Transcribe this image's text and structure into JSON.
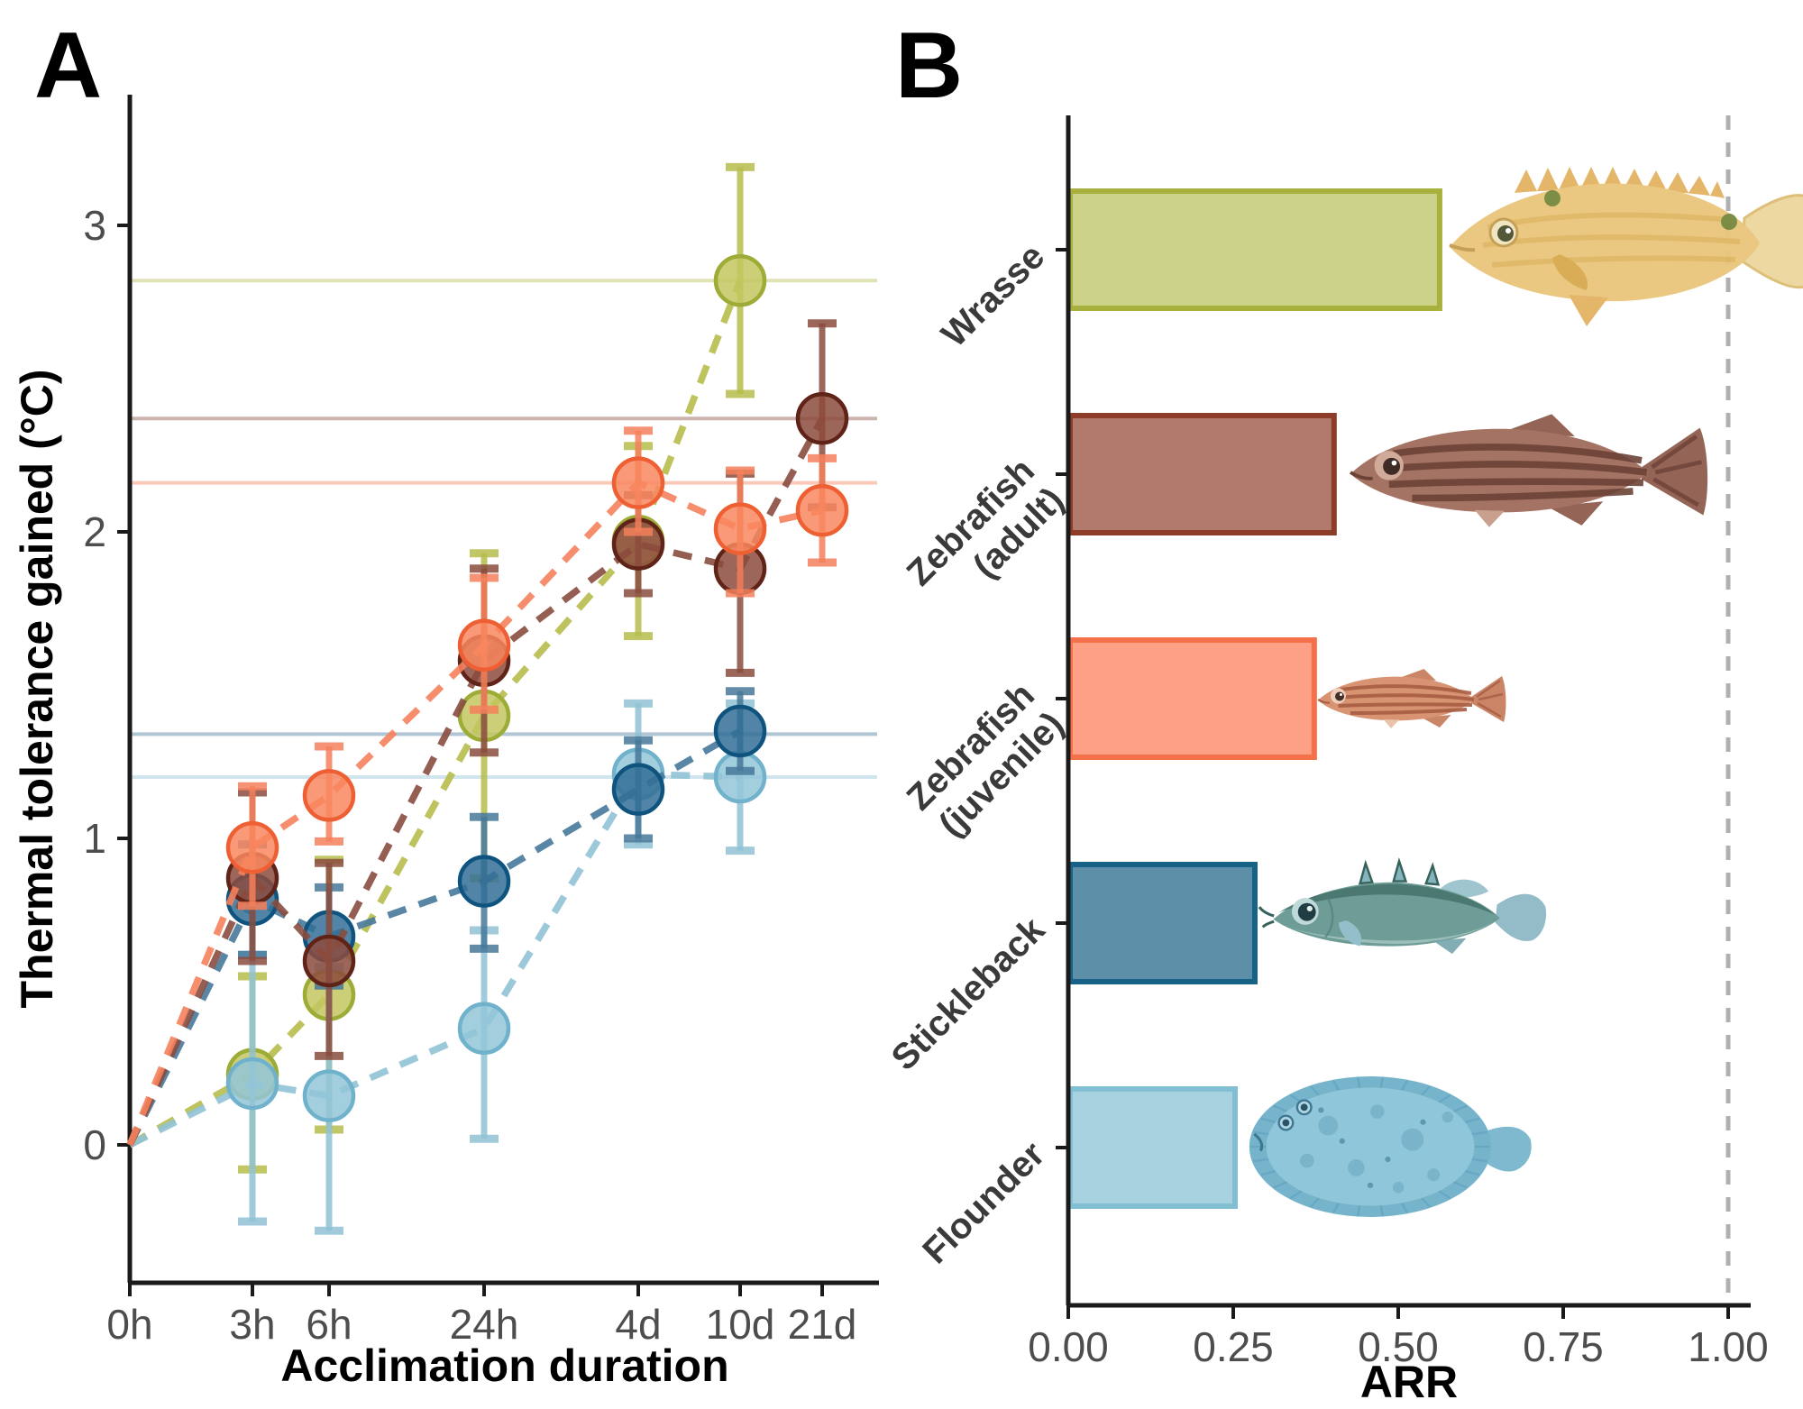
{
  "figure": {
    "panel_a_label": "A",
    "panel_b_label": "B",
    "background": "#ffffff"
  },
  "colors": {
    "axis": "#1a1a1a",
    "tick_label": "#4d4d4d",
    "reference_dash": "#b0b0b0"
  },
  "species": [
    {
      "id": "wrasse",
      "label": "Wrasse",
      "label_lines": [
        "Wrasse"
      ],
      "arr": 0.56,
      "line_color": "#b7bd4d",
      "point_fill": "#c3c75f",
      "point_stroke": "#9dab37",
      "bar_fill": "#ccd289",
      "bar_stroke": "#a8b13e",
      "fish_icon": "wrasse-fish-illustration"
    },
    {
      "id": "zebrafish-adult",
      "label": "Zebrafish (adult)",
      "label_lines": [
        "Zebrafish",
        "(adult)"
      ],
      "arr": 0.4,
      "line_color": "#8a4d3f",
      "point_fill": "#8c4b3d",
      "point_stroke": "#5f2318",
      "bar_fill": "#b17a6c",
      "bar_stroke": "#8e3c2a",
      "fish_icon": "zebrafish-adult-fish-illustration"
    },
    {
      "id": "zebrafish-juvenile",
      "label": "Zebrafish (juvenile)",
      "label_lines": [
        "Zebrafish",
        "(juvenile)"
      ],
      "arr": 0.37,
      "line_color": "#f5815c",
      "point_fill": "#f9875f",
      "point_stroke": "#ee5f33",
      "bar_fill": "#fda085",
      "bar_stroke": "#f4714a",
      "fish_icon": "zebrafish-juvenile-fish-illustration"
    },
    {
      "id": "stickleback",
      "label": "Stickleback",
      "label_lines": [
        "Stickleback"
      ],
      "arr": 0.28,
      "line_color": "#48799b",
      "point_fill": "#336f97",
      "point_stroke": "#0f547e",
      "bar_fill": "#5d8fa9",
      "bar_stroke": "#176286",
      "fish_icon": "stickleback-fish-illustration"
    },
    {
      "id": "flounder",
      "label": "Flounder",
      "label_lines": [
        "Flounder"
      ],
      "arr": 0.25,
      "line_color": "#91c3d5",
      "point_fill": "#93c6d8",
      "point_stroke": "#70b2cb",
      "bar_fill": "#a8d2e0",
      "bar_stroke": "#83bfd3",
      "fish_icon": "flounder-fish-illustration"
    }
  ],
  "chart_data": [
    {
      "type": "scatter",
      "panel": "A",
      "title": "",
      "xlabel": "Acclimation duration",
      "ylabel": "Thermal tolerance gained (°C)",
      "x_categories": [
        "0h",
        "3h",
        "6h",
        "24h",
        "4d",
        "10d",
        "21d"
      ],
      "y_ticks": [
        0,
        1,
        2,
        3
      ],
      "ylim": [
        -0.5,
        3.45
      ],
      "grid": "off",
      "legend_position": "none",
      "point_style": "circles with error bars, dashed connecting lines, faint horizontal asymptote line per series",
      "series": [
        {
          "name": "Wrasse",
          "species": "wrasse",
          "asymptote": 2.82,
          "points": [
            {
              "t": "0h",
              "y": 0,
              "lo": 0,
              "hi": 0
            },
            {
              "t": "3h",
              "y": 0.23,
              "lo": -0.08,
              "hi": 0.55
            },
            {
              "t": "6h",
              "y": 0.49,
              "lo": 0.05,
              "hi": 0.93
            },
            {
              "t": "24h",
              "y": 1.4,
              "lo": 0.87,
              "hi": 1.93
            },
            {
              "t": "4d",
              "y": 1.97,
              "lo": 1.66,
              "hi": 2.28
            },
            {
              "t": "10d",
              "y": 2.82,
              "lo": 2.45,
              "hi": 3.19
            }
          ]
        },
        {
          "name": "Flounder",
          "species": "flounder",
          "asymptote": 1.2,
          "points": [
            {
              "t": "0h",
              "y": 0,
              "lo": 0,
              "hi": 0
            },
            {
              "t": "3h",
              "y": 0.2,
              "lo": -0.25,
              "hi": 0.62
            },
            {
              "t": "6h",
              "y": 0.16,
              "lo": -0.28,
              "hi": 0.58
            },
            {
              "t": "24h",
              "y": 0.38,
              "lo": 0.02,
              "hi": 0.7
            },
            {
              "t": "4d",
              "y": 1.21,
              "lo": 0.98,
              "hi": 1.44
            },
            {
              "t": "10d",
              "y": 1.2,
              "lo": 0.96,
              "hi": 1.44
            }
          ]
        },
        {
          "name": "Stickleback",
          "species": "stickleback",
          "asymptote": 1.34,
          "points": [
            {
              "t": "0h",
              "y": 0,
              "lo": 0,
              "hi": 0
            },
            {
              "t": "3h",
              "y": 0.8,
              "lo": 0.62,
              "hi": 0.98
            },
            {
              "t": "6h",
              "y": 0.68,
              "lo": 0.52,
              "hi": 0.84
            },
            {
              "t": "24h",
              "y": 0.86,
              "lo": 0.64,
              "hi": 1.07
            },
            {
              "t": "4d",
              "y": 1.16,
              "lo": 1.0,
              "hi": 1.32
            },
            {
              "t": "10d",
              "y": 1.35,
              "lo": 1.22,
              "hi": 1.48
            }
          ]
        },
        {
          "name": "Zebrafish (adult)",
          "species": "zebrafish-adult",
          "asymptote": 2.37,
          "points": [
            {
              "t": "0h",
              "y": 0,
              "lo": 0,
              "hi": 0
            },
            {
              "t": "3h",
              "y": 0.87,
              "lo": 0.6,
              "hi": 1.15
            },
            {
              "t": "6h",
              "y": 0.6,
              "lo": 0.29,
              "hi": 0.92
            },
            {
              "t": "24h",
              "y": 1.58,
              "lo": 1.28,
              "hi": 1.88
            },
            {
              "t": "4d",
              "y": 1.96,
              "lo": 1.8,
              "hi": 2.12
            },
            {
              "t": "10d",
              "y": 1.88,
              "lo": 1.54,
              "hi": 2.19
            },
            {
              "t": "21d",
              "y": 2.37,
              "lo": 2.08,
              "hi": 2.68
            }
          ]
        },
        {
          "name": "Zebrafish (juvenile)",
          "species": "zebrafish-juvenile",
          "asymptote": 2.16,
          "points": [
            {
              "t": "0h",
              "y": 0,
              "lo": 0,
              "hi": 0
            },
            {
              "t": "3h",
              "y": 0.97,
              "lo": 0.78,
              "hi": 1.17
            },
            {
              "t": "6h",
              "y": 1.14,
              "lo": 0.99,
              "hi": 1.3
            },
            {
              "t": "24h",
              "y": 1.63,
              "lo": 1.42,
              "hi": 1.85
            },
            {
              "t": "4d",
              "y": 2.16,
              "lo": 2.0,
              "hi": 2.33
            },
            {
              "t": "10d",
              "y": 2.01,
              "lo": 1.8,
              "hi": 2.2
            },
            {
              "t": "21d",
              "y": 2.07,
              "lo": 1.9,
              "hi": 2.24
            }
          ]
        }
      ]
    },
    {
      "type": "bar",
      "panel": "B",
      "orientation": "horizontal",
      "xlabel": "ARR",
      "x_ticks": [
        "0.00",
        "0.25",
        "0.50",
        "0.75",
        "1.00"
      ],
      "xlim": [
        0,
        1.05
      ],
      "categories": [
        "Wrasse",
        "Zebrafish (adult)",
        "Zebrafish (juvenile)",
        "Stickleback",
        "Flounder"
      ],
      "values": [
        0.56,
        0.4,
        0.37,
        0.28,
        0.25
      ],
      "reference_line_x": 1.0,
      "grid": "off",
      "legend_position": "none"
    }
  ]
}
